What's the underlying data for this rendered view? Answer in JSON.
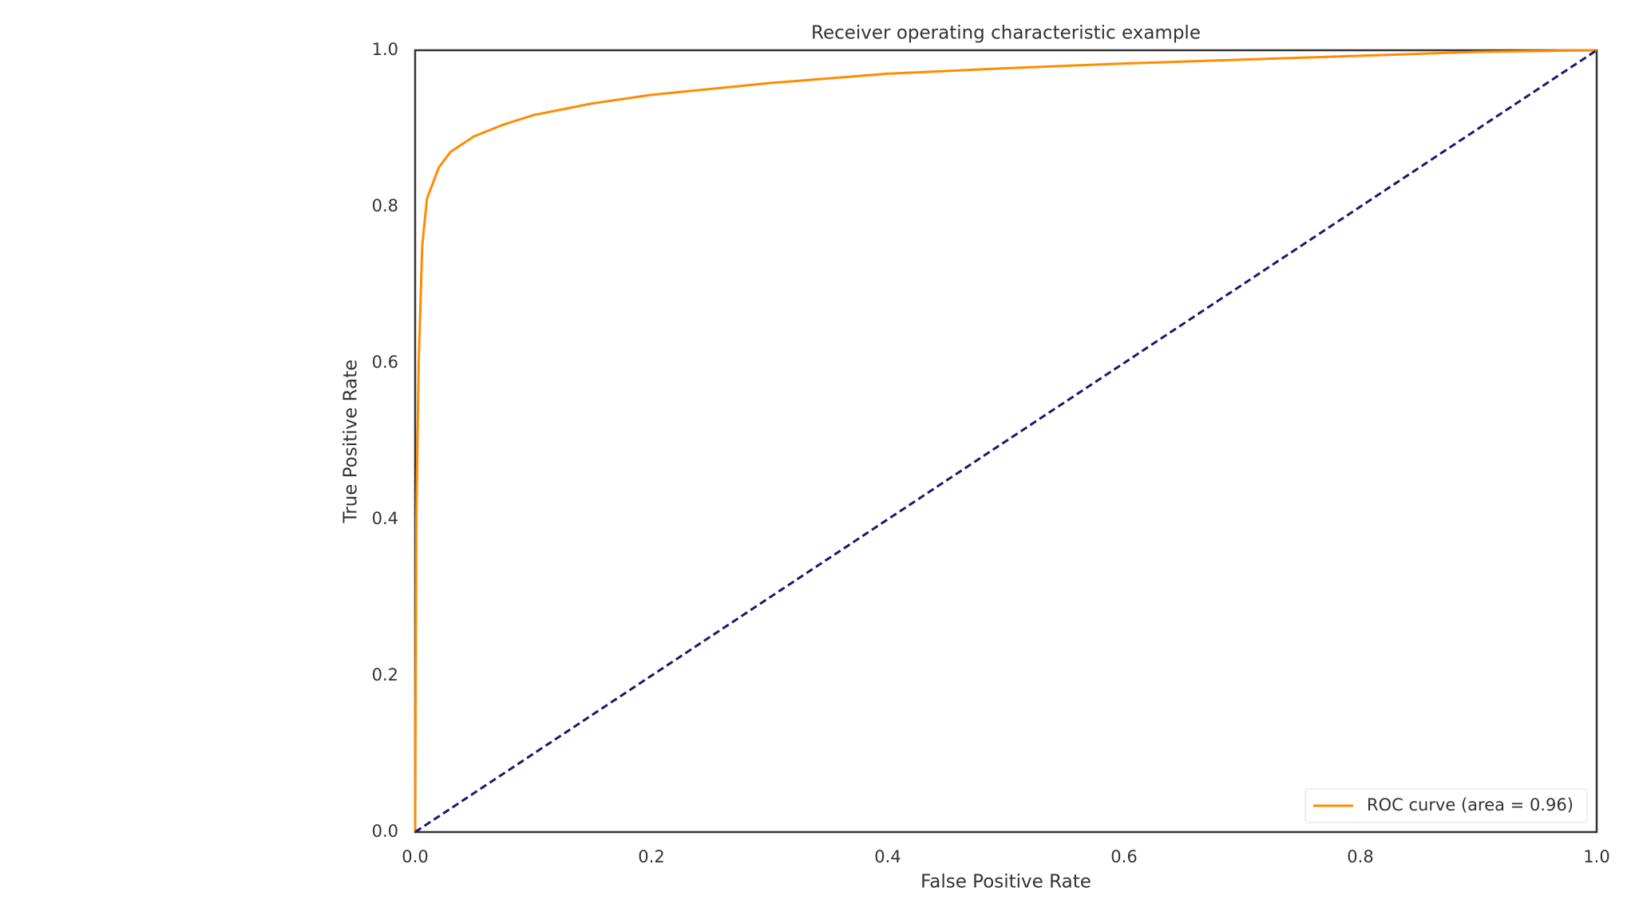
{
  "chart_data": {
    "type": "line",
    "title": "Receiver operating characteristic example",
    "x_label": "False Positive Rate",
    "y_label": "True Positive Rate",
    "xlim": [
      0,
      1
    ],
    "ylim": [
      0,
      1
    ],
    "xticks": [
      {
        "value": 0,
        "label": "0.0"
      },
      0.2,
      0.4,
      0.6,
      0.8,
      {
        "value": 1,
        "label": "1.0"
      }
    ],
    "yticks": [
      {
        "value": 0,
        "label": "0.0"
      },
      0.2,
      0.4,
      0.6,
      0.8,
      {
        "value": 1,
        "label": "1.0"
      }
    ],
    "grid": false,
    "legend": "lower right",
    "series": [
      {
        "name": "ROC curve (area = 0.96)",
        "color": "#ff8c00",
        "dashed": false,
        "x": [
          0,
          0.001,
          0.003,
          0.006,
          0.01,
          0.02,
          0.03,
          0.05,
          0.075,
          0.1,
          0.15,
          0.2,
          0.3,
          0.4,
          0.5,
          0.6,
          0.7,
          0.8,
          0.9,
          1
        ],
        "values": [
          0,
          0.4,
          0.6,
          0.75,
          0.81,
          0.85,
          0.87,
          0.89,
          0.905,
          0.917,
          0.932,
          0.943,
          0.958,
          0.97,
          0.977,
          0.983,
          0.988,
          0.993,
          0.998,
          1
        ]
      },
      {
        "color": "#191970",
        "dashed": true,
        "x": [
          0,
          1
        ],
        "values": [
          0,
          1
        ]
      }
    ]
  }
}
